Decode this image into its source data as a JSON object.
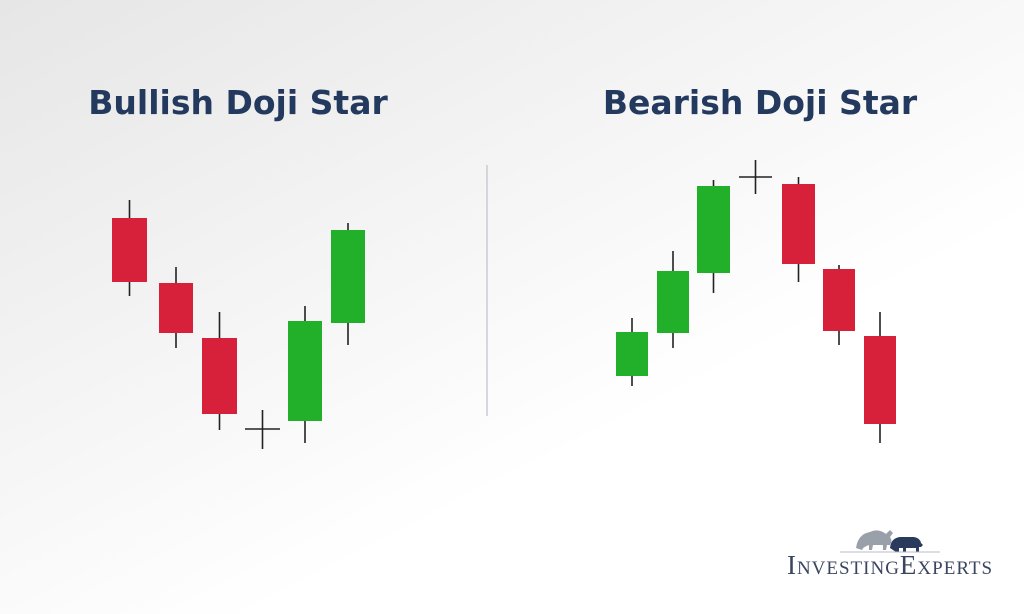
{
  "panels": [
    {
      "title": "Bullish Doji Star"
    },
    {
      "title": "Bearish Doji Star"
    }
  ],
  "logo": {
    "text": "InvestingExperts"
  }
}
